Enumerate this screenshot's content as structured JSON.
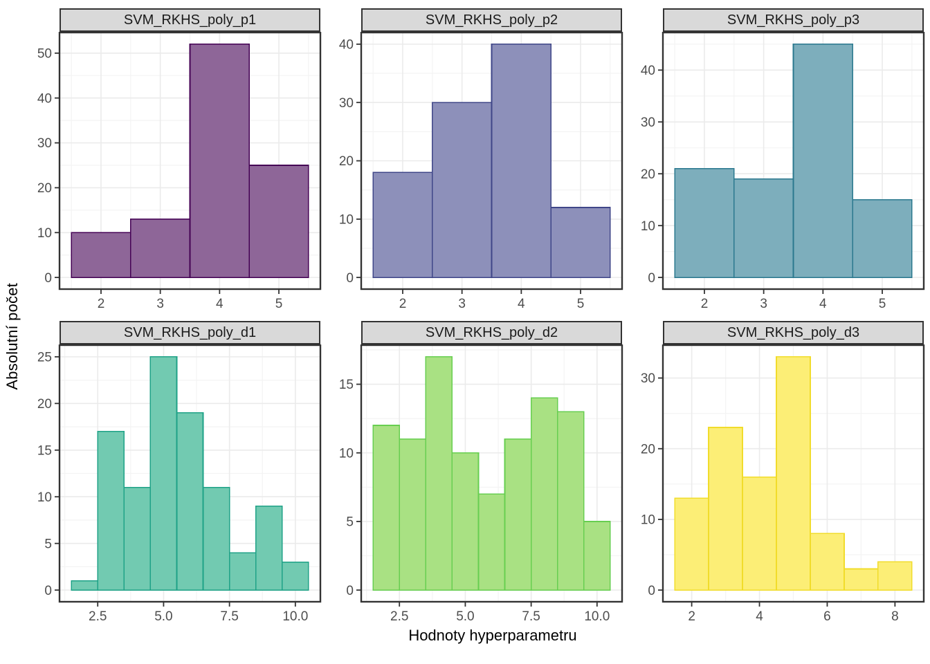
{
  "figure": {
    "x_axis_title": "Hodnoty hyperparametru",
    "y_axis_title": "Absolutní počet"
  },
  "theme": {
    "strip_bg": "#D9D9D9",
    "panel_border": "#333333",
    "panel_bg": "#FFFFFF",
    "grid_major": "#EBEBEB",
    "grid_minor": "#F4F4F4",
    "tick_color": "#333333",
    "tick_label_color": "#4D4D4D"
  },
  "chart_data": [
    {
      "type": "bar",
      "title": "SVM_RKHS_poly_p1",
      "bin_start": 1.5,
      "bin_width": 1,
      "values": [
        10,
        13,
        52,
        25
      ],
      "x_ticks": [
        2,
        3,
        4,
        5
      ],
      "x_tick_labels": [
        "2",
        "3",
        "4",
        "5"
      ],
      "y_ticks": [
        0,
        10,
        20,
        30,
        40,
        50
      ],
      "y_tick_labels": [
        "0",
        "10",
        "20",
        "30",
        "40",
        "50"
      ],
      "x_domain": [
        1.3,
        5.7
      ],
      "y_domain": [
        -2.6,
        54.6
      ],
      "fill": "#8E6698",
      "stroke": "#440154",
      "grid": true,
      "legend": "none"
    },
    {
      "type": "bar",
      "title": "SVM_RKHS_poly_p2",
      "bin_start": 1.5,
      "bin_width": 1,
      "values": [
        18,
        30,
        40,
        12
      ],
      "x_ticks": [
        2,
        3,
        4,
        5
      ],
      "x_tick_labels": [
        "2",
        "3",
        "4",
        "5"
      ],
      "y_ticks": [
        0,
        10,
        20,
        30,
        40
      ],
      "y_tick_labels": [
        "0",
        "10",
        "20",
        "30",
        "40"
      ],
      "x_domain": [
        1.3,
        5.7
      ],
      "y_domain": [
        -2.0,
        42.0
      ],
      "fill": "#8D90BA",
      "stroke": "#3F4688",
      "grid": true,
      "legend": "none"
    },
    {
      "type": "bar",
      "title": "SVM_RKHS_poly_p3",
      "bin_start": 1.5,
      "bin_width": 1,
      "values": [
        21,
        19,
        45,
        15
      ],
      "x_ticks": [
        2,
        3,
        4,
        5
      ],
      "x_tick_labels": [
        "2",
        "3",
        "4",
        "5"
      ],
      "y_ticks": [
        0,
        10,
        20,
        30,
        40
      ],
      "y_tick_labels": [
        "0",
        "10",
        "20",
        "30",
        "40"
      ],
      "x_domain": [
        1.3,
        5.7
      ],
      "y_domain": [
        -2.25,
        47.25
      ],
      "fill": "#7DAEBC",
      "stroke": "#2A788E",
      "grid": true,
      "legend": "none"
    },
    {
      "type": "bar",
      "title": "SVM_RKHS_poly_d1",
      "bin_start": 1.5,
      "bin_width": 1,
      "values": [
        1,
        17,
        11,
        25,
        19,
        11,
        4,
        9,
        3
      ],
      "x_ticks": [
        2.5,
        5.0,
        7.5,
        10.0
      ],
      "x_tick_labels": [
        "2.5",
        "5.0",
        "7.5",
        "10.0"
      ],
      "y_ticks": [
        0,
        5,
        10,
        15,
        20,
        25
      ],
      "y_tick_labels": [
        "0",
        "5",
        "10",
        "15",
        "20",
        "25"
      ],
      "x_domain": [
        1.05,
        10.95
      ],
      "y_domain": [
        -1.25,
        26.25
      ],
      "fill": "#72CAB1",
      "stroke": "#1FA287",
      "grid": true,
      "legend": "none"
    },
    {
      "type": "bar",
      "title": "SVM_RKHS_poly_d2",
      "bin_start": 1.5,
      "bin_width": 1,
      "values": [
        12,
        11,
        17,
        10,
        7,
        11,
        14,
        13,
        5
      ],
      "x_ticks": [
        2.5,
        5.0,
        7.5,
        10.0
      ],
      "x_tick_labels": [
        "2.5",
        "5.0",
        "7.5",
        "10.0"
      ],
      "y_ticks": [
        0,
        5,
        10,
        15
      ],
      "y_tick_labels": [
        "0",
        "5",
        "10",
        "15"
      ],
      "x_domain": [
        1.05,
        10.95
      ],
      "y_domain": [
        -0.85,
        17.85
      ],
      "fill": "#A9E183",
      "stroke": "#67CE50",
      "grid": true,
      "legend": "none"
    },
    {
      "type": "bar",
      "title": "SVM_RKHS_poly_d3",
      "bin_start": 1.5,
      "bin_width": 1,
      "values": [
        13,
        23,
        16,
        33,
        8,
        3,
        4
      ],
      "x_ticks": [
        2,
        4,
        6,
        8
      ],
      "x_tick_labels": [
        "2",
        "4",
        "6",
        "8"
      ],
      "y_ticks": [
        0,
        10,
        20,
        30
      ],
      "y_tick_labels": [
        "0",
        "10",
        "20",
        "30"
      ],
      "x_domain": [
        1.15,
        8.85
      ],
      "y_domain": [
        -1.65,
        34.65
      ],
      "fill": "#FCEE76",
      "stroke": "#F1DC2B",
      "grid": true,
      "legend": "none"
    }
  ]
}
